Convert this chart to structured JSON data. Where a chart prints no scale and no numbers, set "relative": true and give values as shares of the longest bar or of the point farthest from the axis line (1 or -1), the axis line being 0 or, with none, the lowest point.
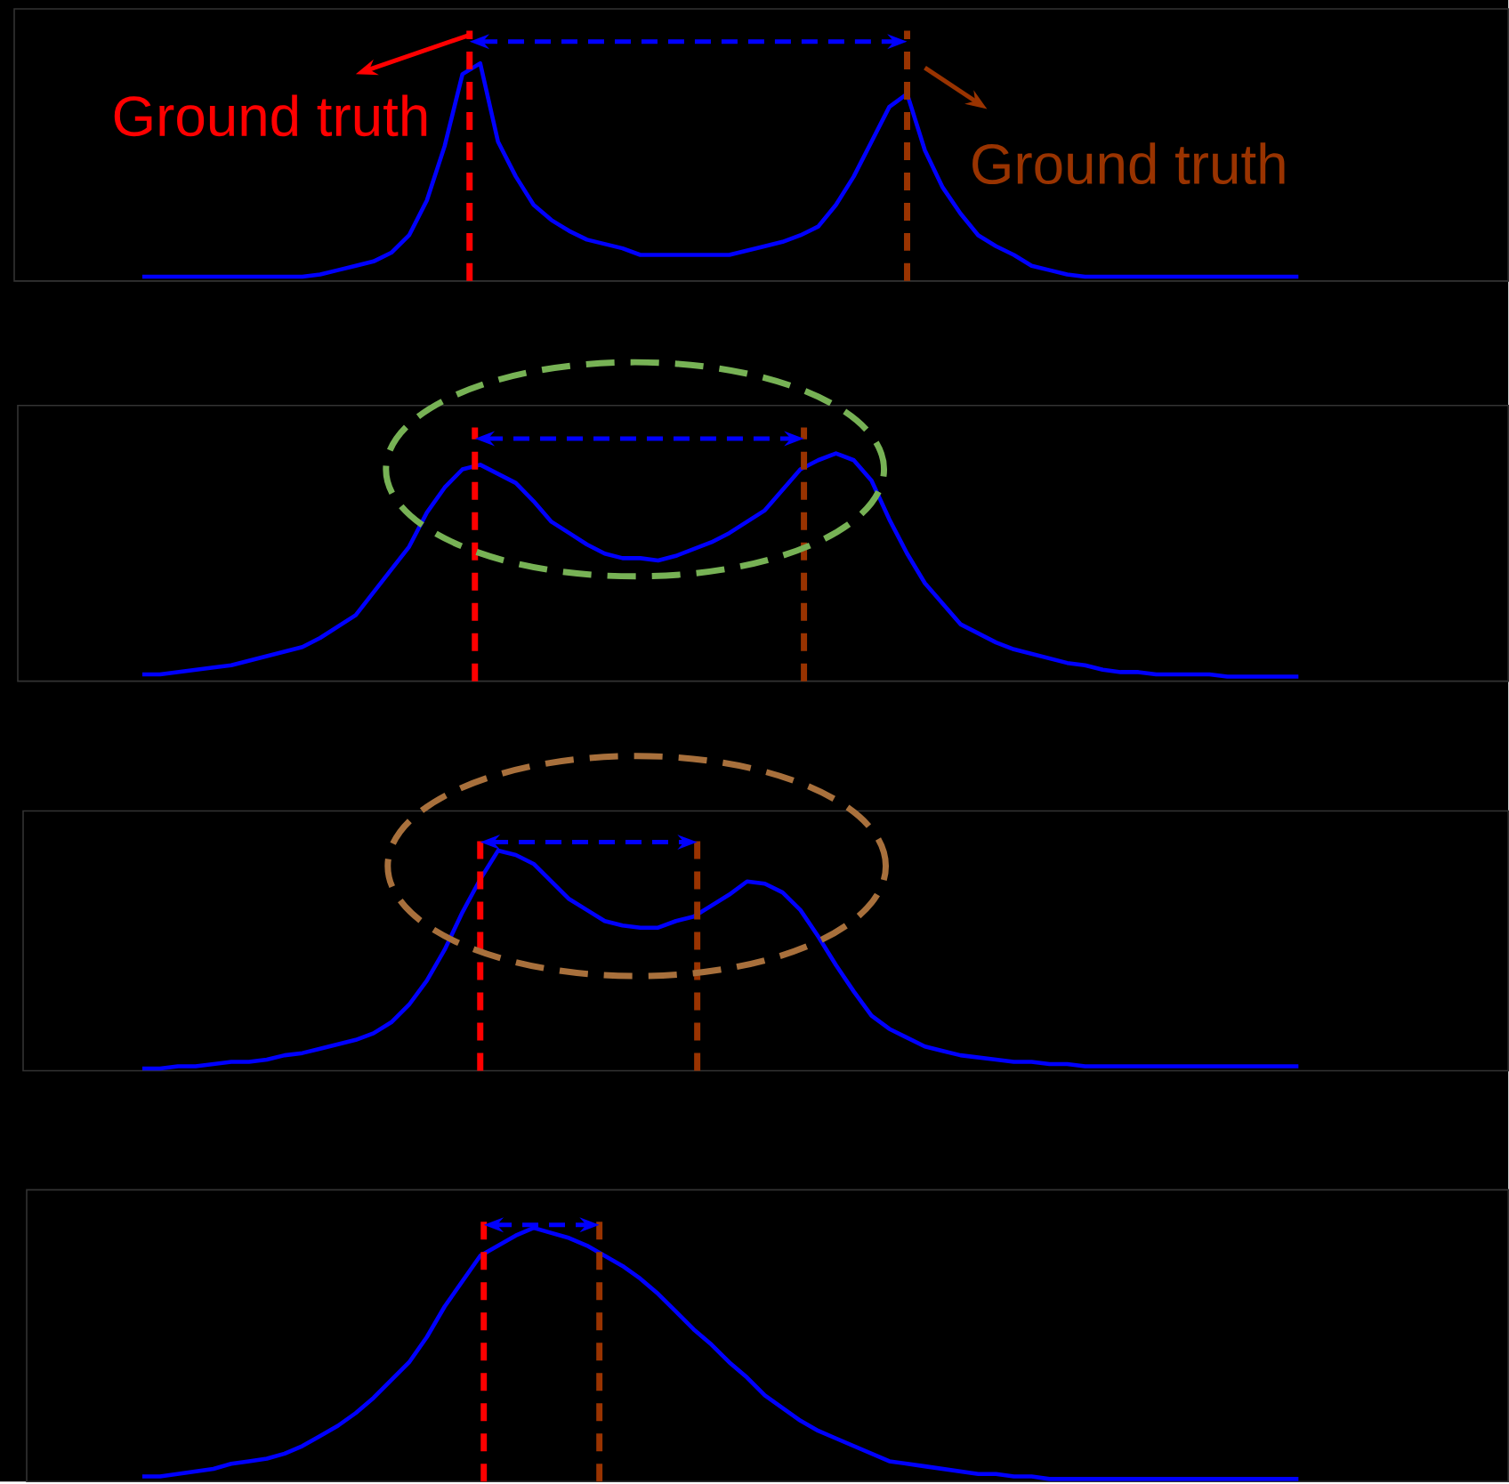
{
  "chart_data": [
    {
      "type": "line",
      "relative": true,
      "tick_labels": false,
      "color": "#0000ff",
      "categories": [
        null,
        null,
        null,
        null,
        null,
        null,
        null,
        null,
        null,
        null,
        null,
        null,
        null,
        null,
        null,
        null,
        null,
        null,
        null,
        null,
        null,
        null,
        null,
        null,
        null,
        null,
        null,
        null,
        null,
        null,
        null,
        null,
        null,
        null,
        null,
        null,
        null,
        null,
        null,
        null,
        null,
        null,
        null,
        null,
        null,
        null,
        null,
        null,
        null,
        null,
        null,
        null,
        null,
        null,
        null,
        null,
        null,
        null,
        null,
        null,
        null,
        null,
        null,
        null,
        null,
        null
      ],
      "values": [
        0.02,
        0.02,
        0.02,
        0.02,
        0.02,
        0.02,
        0.02,
        0.02,
        0.02,
        0.02,
        0.03,
        0.05,
        0.07,
        0.09,
        0.13,
        0.21,
        0.37,
        0.62,
        0.95,
        1.0,
        0.64,
        0.48,
        0.35,
        0.28,
        0.23,
        0.19,
        0.17,
        0.15,
        0.12,
        0.12,
        0.12,
        0.12,
        0.12,
        0.12,
        0.14,
        0.16,
        0.18,
        0.21,
        0.25,
        0.35,
        0.48,
        0.64,
        0.8,
        0.86,
        0.6,
        0.43,
        0.31,
        0.21,
        0.16,
        0.12,
        0.07,
        0.05,
        0.03,
        0.02,
        0.02,
        0.02,
        0.02,
        0.02,
        0.02,
        0.02,
        0.02,
        0.02,
        0.02,
        0.02,
        0.02,
        0.02
      ],
      "annotations": [
        "Ground truth",
        "Ground truth"
      ]
    },
    {
      "type": "line",
      "relative": true,
      "tick_labels": false,
      "color": "#0000ff",
      "categories": [
        null,
        null,
        null,
        null,
        null,
        null,
        null,
        null,
        null,
        null,
        null,
        null,
        null,
        null,
        null,
        null,
        null,
        null,
        null,
        null,
        null,
        null,
        null,
        null,
        null,
        null,
        null,
        null,
        null,
        null,
        null,
        null,
        null,
        null,
        null,
        null,
        null,
        null,
        null,
        null,
        null,
        null,
        null,
        null,
        null,
        null,
        null,
        null,
        null,
        null,
        null,
        null,
        null,
        null,
        null,
        null,
        null,
        null,
        null,
        null,
        null,
        null,
        null,
        null,
        null,
        null
      ],
      "values": [
        0.03,
        0.03,
        0.04,
        0.05,
        0.06,
        0.07,
        0.09,
        0.11,
        0.13,
        0.15,
        0.19,
        0.24,
        0.29,
        0.39,
        0.49,
        0.59,
        0.74,
        0.85,
        0.93,
        0.95,
        0.91,
        0.87,
        0.79,
        0.7,
        0.65,
        0.6,
        0.56,
        0.54,
        0.54,
        0.53,
        0.55,
        0.58,
        0.61,
        0.65,
        0.7,
        0.75,
        0.84,
        0.93,
        0.97,
        1.0,
        0.97,
        0.88,
        0.71,
        0.56,
        0.43,
        0.34,
        0.25,
        0.21,
        0.17,
        0.14,
        0.12,
        0.1,
        0.08,
        0.07,
        0.05,
        0.04,
        0.04,
        0.03,
        0.03,
        0.03,
        0.03,
        0.02,
        0.02,
        0.02,
        0.02,
        0.02
      ]
    },
    {
      "type": "line",
      "relative": true,
      "tick_labels": false,
      "color": "#0000ff",
      "categories": [
        null,
        null,
        null,
        null,
        null,
        null,
        null,
        null,
        null,
        null,
        null,
        null,
        null,
        null,
        null,
        null,
        null,
        null,
        null,
        null,
        null,
        null,
        null,
        null,
        null,
        null,
        null,
        null,
        null,
        null,
        null,
        null,
        null,
        null,
        null,
        null,
        null,
        null,
        null,
        null,
        null,
        null,
        null,
        null,
        null,
        null,
        null,
        null,
        null,
        null,
        null,
        null,
        null,
        null,
        null,
        null,
        null,
        null,
        null,
        null,
        null,
        null,
        null,
        null,
        null,
        null
      ],
      "values": [
        0.01,
        0.01,
        0.02,
        0.02,
        0.03,
        0.04,
        0.04,
        0.05,
        0.07,
        0.08,
        0.1,
        0.12,
        0.14,
        0.17,
        0.22,
        0.3,
        0.41,
        0.55,
        0.72,
        0.87,
        1.0,
        0.98,
        0.94,
        0.86,
        0.78,
        0.73,
        0.68,
        0.66,
        0.65,
        0.65,
        0.68,
        0.7,
        0.75,
        0.8,
        0.86,
        0.85,
        0.81,
        0.73,
        0.61,
        0.48,
        0.36,
        0.25,
        0.19,
        0.15,
        0.11,
        0.09,
        0.07,
        0.06,
        0.05,
        0.04,
        0.04,
        0.03,
        0.03,
        0.02,
        0.02,
        0.02,
        0.02,
        0.02,
        0.02,
        0.02,
        0.02,
        0.02,
        0.02,
        0.02,
        0.02,
        0.02
      ]
    },
    {
      "type": "line",
      "relative": true,
      "tick_labels": false,
      "color": "#0000ff",
      "categories": [
        null,
        null,
        null,
        null,
        null,
        null,
        null,
        null,
        null,
        null,
        null,
        null,
        null,
        null,
        null,
        null,
        null,
        null,
        null,
        null,
        null,
        null,
        null,
        null,
        null,
        null,
        null,
        null,
        null,
        null,
        null,
        null,
        null,
        null,
        null,
        null,
        null,
        null,
        null,
        null,
        null,
        null,
        null,
        null,
        null,
        null,
        null,
        null,
        null,
        null,
        null,
        null,
        null,
        null,
        null,
        null,
        null,
        null,
        null,
        null,
        null,
        null,
        null,
        null,
        null,
        null
      ],
      "values": [
        0.02,
        0.02,
        0.03,
        0.04,
        0.05,
        0.07,
        0.08,
        0.09,
        0.11,
        0.14,
        0.18,
        0.22,
        0.27,
        0.33,
        0.4,
        0.47,
        0.57,
        0.69,
        0.79,
        0.89,
        0.93,
        0.97,
        1.0,
        0.98,
        0.96,
        0.93,
        0.89,
        0.85,
        0.8,
        0.74,
        0.67,
        0.6,
        0.54,
        0.47,
        0.41,
        0.34,
        0.29,
        0.24,
        0.2,
        0.17,
        0.14,
        0.11,
        0.08,
        0.07,
        0.06,
        0.05,
        0.04,
        0.03,
        0.03,
        0.02,
        0.02,
        0.01,
        0.01,
        0.01,
        0.01,
        0.01,
        0.01,
        0.01,
        0.01,
        0.01,
        0.01,
        0.01,
        0.01,
        0.01,
        0.01,
        0.01
      ]
    }
  ]
}
